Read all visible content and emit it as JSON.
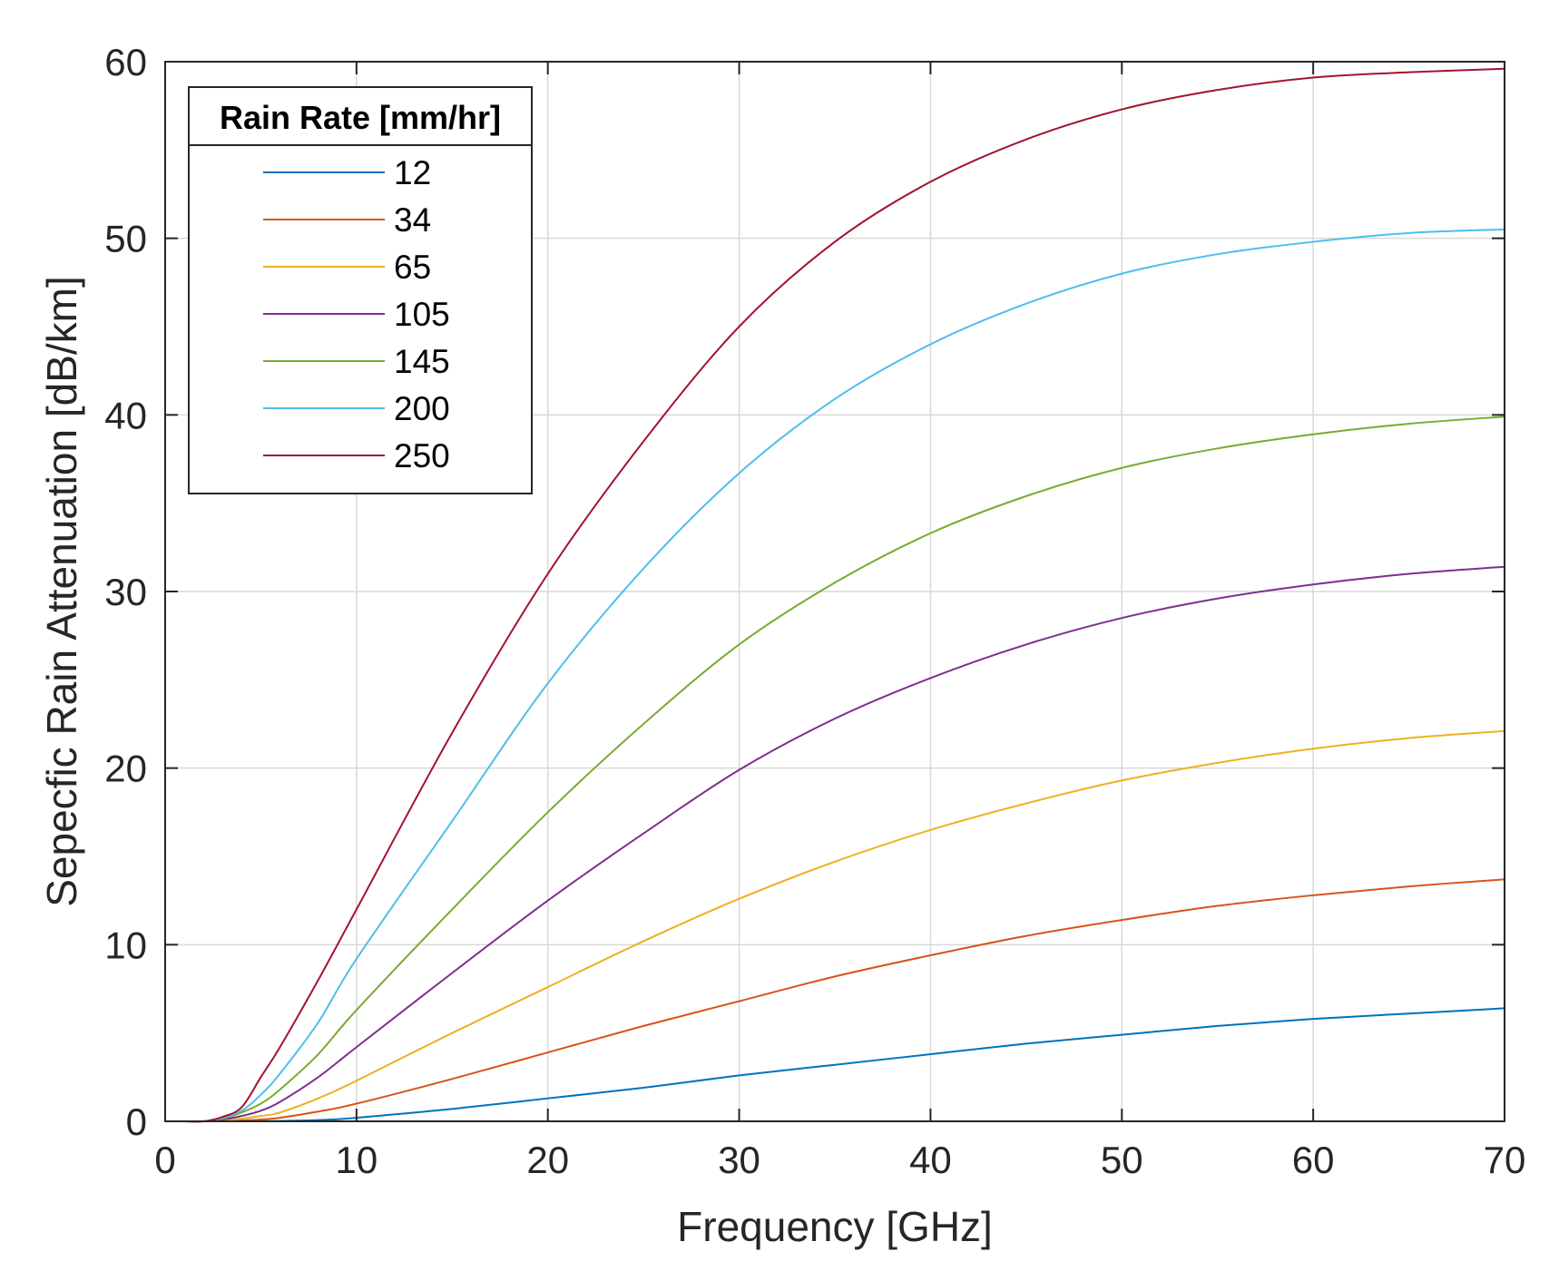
{
  "chart_data": {
    "type": "line",
    "title": "",
    "xlabel": "Frequency [GHz]",
    "ylabel": "Sepecfic Rain Attenuation [dB/km]",
    "xlim": [
      0,
      70
    ],
    "ylim": [
      0,
      60
    ],
    "xticks": [
      0,
      10,
      20,
      30,
      40,
      50,
      60,
      70
    ],
    "yticks": [
      0,
      10,
      20,
      30,
      40,
      50,
      60
    ],
    "grid": true,
    "legend_title": "Rain Rate [mm/hr]",
    "legend_position": "top-left",
    "x": [
      1,
      2,
      3,
      4,
      5,
      6,
      8,
      10,
      15,
      20,
      25,
      30,
      35,
      40,
      45,
      50,
      55,
      60,
      65,
      70
    ],
    "series": [
      {
        "name": "12",
        "color": "#0072BD",
        "values": [
          0,
          0,
          0,
          0,
          0.01,
          0.02,
          0.07,
          0.2,
          0.7,
          1.3,
          1.9,
          2.6,
          3.2,
          3.8,
          4.4,
          4.9,
          5.4,
          5.8,
          6.1,
          6.4
        ]
      },
      {
        "name": "34",
        "color": "#D95319",
        "values": [
          0,
          0,
          0.02,
          0.05,
          0.1,
          0.2,
          0.55,
          1.0,
          2.4,
          3.9,
          5.4,
          6.8,
          8.2,
          9.4,
          10.5,
          11.4,
          12.2,
          12.8,
          13.3,
          13.7
        ]
      },
      {
        "name": "65",
        "color": "#EDB120",
        "values": [
          0,
          0,
          0.05,
          0.15,
          0.3,
          0.5,
          1.3,
          2.3,
          5.0,
          7.6,
          10.2,
          12.6,
          14.7,
          16.5,
          18.0,
          19.3,
          20.3,
          21.1,
          21.7,
          22.1
        ]
      },
      {
        "name": "105",
        "color": "#7E2F8E",
        "values": [
          0,
          0,
          0.1,
          0.3,
          0.6,
          1.1,
          2.5,
          4.2,
          8.4,
          12.5,
          16.3,
          19.9,
          22.8,
          25.1,
          27.0,
          28.5,
          29.6,
          30.4,
          31.0,
          31.4
        ]
      },
      {
        "name": "145",
        "color": "#77AC30",
        "values": [
          0,
          0,
          0.15,
          0.5,
          1.0,
          1.8,
          3.8,
          6.3,
          12.0,
          17.5,
          22.5,
          27.0,
          30.5,
          33.3,
          35.4,
          37.0,
          38.1,
          38.9,
          39.5,
          39.9
        ]
      },
      {
        "name": "200",
        "color": "#4DBEEE",
        "values": [
          0,
          0,
          0.2,
          0.6,
          1.5,
          2.7,
          5.6,
          9.2,
          17.0,
          24.8,
          31.3,
          36.7,
          40.9,
          44.0,
          46.3,
          48.0,
          49.1,
          49.8,
          50.3,
          50.5
        ]
      },
      {
        "name": "250",
        "color": "#A2142F",
        "values": [
          0,
          0,
          0.25,
          0.8,
          2.5,
          4.2,
          8.0,
          12.0,
          22.0,
          31.0,
          38.5,
          45.0,
          49.8,
          53.2,
          55.6,
          57.3,
          58.4,
          59.1,
          59.4,
          59.6
        ]
      }
    ]
  }
}
